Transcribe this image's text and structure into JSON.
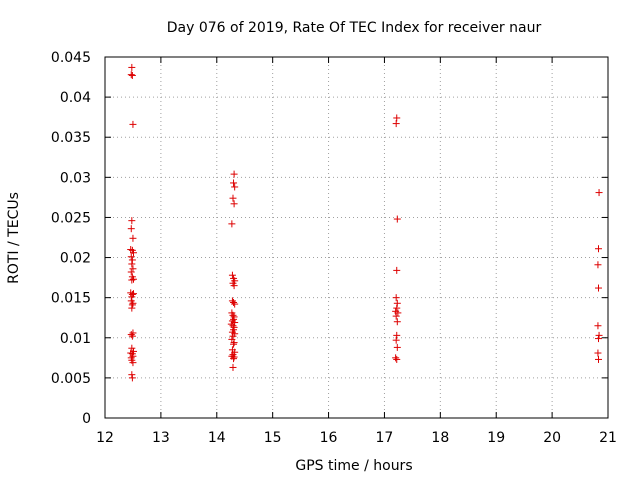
{
  "chart_data": {
    "type": "scatter",
    "title": "Day 076 of 2019, Rate Of TEC Index for receiver naur",
    "xlabel": "GPS time / hours",
    "ylabel": "ROTI / TECUs",
    "xlim": [
      12,
      21
    ],
    "ylim": [
      0,
      0.045
    ],
    "x_ticks": [
      "12",
      "13",
      "14",
      "15",
      "16",
      "17",
      "18",
      "19",
      "20",
      "21"
    ],
    "y_ticks": [
      "0",
      "0.005",
      "0.01",
      "0.015",
      "0.02",
      "0.025",
      "0.03",
      "0.035",
      "0.04",
      "0.045"
    ],
    "grid": true,
    "marker": "+",
    "series": [
      {
        "name": "ROTI",
        "color": "#dd0000",
        "points": [
          [
            12.48,
            0.0437
          ],
          [
            12.47,
            0.0428
          ],
          [
            12.49,
            0.0427
          ],
          [
            12.5,
            0.0366
          ],
          [
            12.48,
            0.0246
          ],
          [
            12.47,
            0.0236
          ],
          [
            12.5,
            0.0224
          ],
          [
            12.46,
            0.021
          ],
          [
            12.49,
            0.0209
          ],
          [
            12.51,
            0.0206
          ],
          [
            12.47,
            0.0201
          ],
          [
            12.49,
            0.0197
          ],
          [
            12.48,
            0.0192
          ],
          [
            12.5,
            0.0186
          ],
          [
            12.47,
            0.0182
          ],
          [
            12.49,
            0.0176
          ],
          [
            12.51,
            0.0173
          ],
          [
            12.48,
            0.0172
          ],
          [
            12.46,
            0.0156
          ],
          [
            12.49,
            0.0154
          ],
          [
            12.51,
            0.0155
          ],
          [
            12.48,
            0.0151
          ],
          [
            12.47,
            0.0146
          ],
          [
            12.5,
            0.0143
          ],
          [
            12.49,
            0.0141
          ],
          [
            12.48,
            0.0137
          ],
          [
            12.5,
            0.0106
          ],
          [
            12.47,
            0.0104
          ],
          [
            12.49,
            0.0102
          ],
          [
            12.48,
            0.0087
          ],
          [
            12.51,
            0.0083
          ],
          [
            12.46,
            0.0081
          ],
          [
            12.49,
            0.008
          ],
          [
            12.5,
            0.0077
          ],
          [
            12.47,
            0.0075
          ],
          [
            12.48,
            0.0072
          ],
          [
            12.5,
            0.0069
          ],
          [
            12.48,
            0.0054
          ],
          [
            12.49,
            0.005
          ],
          [
            14.31,
            0.0304
          ],
          [
            14.3,
            0.0293
          ],
          [
            14.32,
            0.0288
          ],
          [
            14.29,
            0.0274
          ],
          [
            14.31,
            0.0267
          ],
          [
            14.27,
            0.0242
          ],
          [
            14.28,
            0.0178
          ],
          [
            14.3,
            0.0174
          ],
          [
            14.32,
            0.0171
          ],
          [
            14.29,
            0.0168
          ],
          [
            14.31,
            0.0165
          ],
          [
            14.28,
            0.0146
          ],
          [
            14.3,
            0.0144
          ],
          [
            14.32,
            0.0142
          ],
          [
            14.27,
            0.0131
          ],
          [
            14.29,
            0.0128
          ],
          [
            14.31,
            0.0126
          ],
          [
            14.3,
            0.0123
          ],
          [
            14.28,
            0.0121
          ],
          [
            14.32,
            0.0119
          ],
          [
            14.26,
            0.0117
          ],
          [
            14.29,
            0.0115
          ],
          [
            14.31,
            0.0113
          ],
          [
            14.3,
            0.011
          ],
          [
            14.28,
            0.0107
          ],
          [
            14.32,
            0.0105
          ],
          [
            14.29,
            0.0102
          ],
          [
            14.27,
            0.0098
          ],
          [
            14.31,
            0.0094
          ],
          [
            14.3,
            0.0092
          ],
          [
            14.28,
            0.0085
          ],
          [
            14.32,
            0.0082
          ],
          [
            14.29,
            0.0079
          ],
          [
            14.27,
            0.0077
          ],
          [
            14.31,
            0.0076
          ],
          [
            14.3,
            0.0074
          ],
          [
            14.29,
            0.0063
          ],
          [
            17.22,
            0.0374
          ],
          [
            17.21,
            0.0367
          ],
          [
            17.23,
            0.0248
          ],
          [
            17.22,
            0.0184
          ],
          [
            17.21,
            0.015
          ],
          [
            17.23,
            0.0143
          ],
          [
            17.22,
            0.0137
          ],
          [
            17.2,
            0.0133
          ],
          [
            17.24,
            0.0131
          ],
          [
            17.21,
            0.0127
          ],
          [
            17.23,
            0.012
          ],
          [
            17.22,
            0.0103
          ],
          [
            17.21,
            0.0097
          ],
          [
            17.23,
            0.0088
          ],
          [
            17.2,
            0.0075
          ],
          [
            17.22,
            0.0073
          ],
          [
            20.84,
            0.0281
          ],
          [
            20.83,
            0.0211
          ],
          [
            20.82,
            0.0191
          ],
          [
            20.83,
            0.0162
          ],
          [
            20.82,
            0.0115
          ],
          [
            20.84,
            0.0103
          ],
          [
            20.83,
            0.0099
          ],
          [
            20.82,
            0.0081
          ],
          [
            20.83,
            0.0073
          ]
        ]
      }
    ]
  }
}
